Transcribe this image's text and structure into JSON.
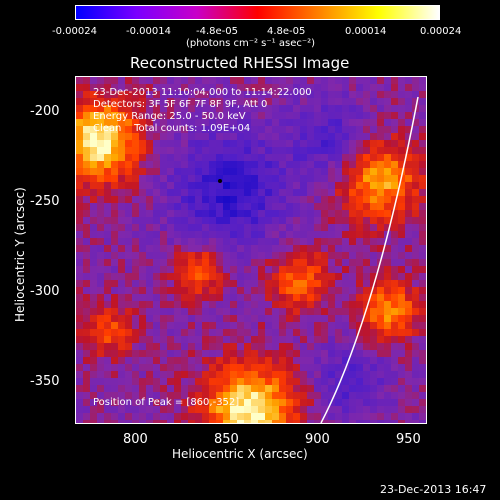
{
  "colorbar": {
    "tick_labels": [
      "-0.00024",
      "-0.00014",
      "-4.8e-05",
      "4.8e-05",
      "0.00014",
      "0.00024"
    ],
    "units_label": "(photons cm⁻² s⁻¹ asec⁻²)",
    "gradient_colors": [
      "#0000ff",
      "#7a00ff",
      "#c800c8",
      "#ff0000",
      "#ff7f00",
      "#ffff00",
      "#ffffff"
    ]
  },
  "title": "Reconstructed RHESSI Image",
  "info_lines": [
    "23-Dec-2013 11:10:04.000 to 11:14:22.000",
    "Detectors: 3F 5F 6F 7F 8F 9F, Att 0",
    "Energy Range: 25.0 - 50.0 keV",
    "Clean    Total counts: 1.09E+04"
  ],
  "peak_label": "Position of Peak = [860,-352]",
  "x_axis": {
    "label": "Heliocentric X (arcsec)",
    "ticks": [
      "800",
      "850",
      "900",
      "950"
    ]
  },
  "y_axis": {
    "label": "Heliocentric Y (arcsec)",
    "ticks": [
      "-200",
      "-250",
      "-300",
      "-350"
    ]
  },
  "footer_date": "23-Dec-2013 16:47"
}
